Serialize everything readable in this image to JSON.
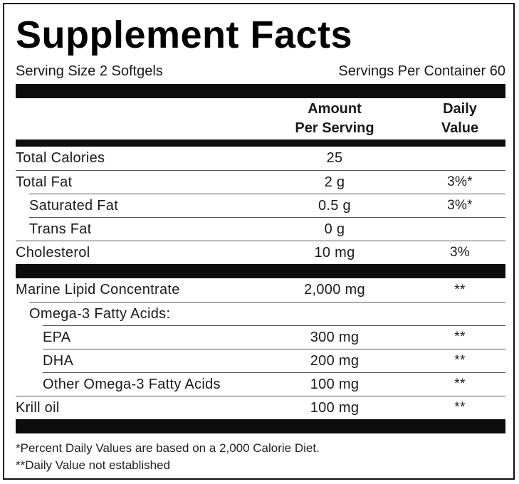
{
  "header": {
    "title": "Supplement Facts",
    "serving_size": "Serving Size 2 Softgels",
    "servings_per_container": "Servings Per Container 60"
  },
  "table": {
    "columns": {
      "amount": [
        "Amount",
        "Per Serving"
      ],
      "daily_value": [
        "Daily",
        "Value"
      ]
    },
    "sections": [
      {
        "rows": [
          {
            "name": "Total Calories",
            "amount": "25"
          },
          {
            "name": "Total Fat",
            "amount": "2 g",
            "daily_value": "3%*",
            "rows": [
              {
                "name": "Saturated Fat",
                "amount": "0.5 g",
                "daily_value": "3%*"
              },
              {
                "name": "Trans Fat",
                "amount": "0 g"
              }
            ]
          },
          {
            "name": "Cholesterol",
            "amount": "10 mg",
            "daily_value": "3%"
          }
        ]
      },
      {
        "rows": [
          {
            "name": "Marine Lipid Concentrate",
            "amount": "2,000 mg",
            "daily_value": "**",
            "rows": [
              {
                "name": "Omega-3 Fatty Acids:",
                "rows": [
                  {
                    "name": "EPA",
                    "amount": "300 mg",
                    "daily_value": "**"
                  },
                  {
                    "name": "DHA",
                    "amount": "200 mg",
                    "daily_value": "**"
                  },
                  {
                    "name": "Other Omega-3 Fatty Acids",
                    "amount": "100 mg",
                    "daily_value": "**"
                  }
                ]
              }
            ]
          },
          {
            "name": "Krill oil",
            "amount": "100 mg",
            "daily_value": "**"
          }
        ]
      }
    ]
  },
  "footnotes": [
    "*Percent Daily Values are based on a 2,000 Calorie Diet.",
    "**Daily Value not established"
  ]
}
